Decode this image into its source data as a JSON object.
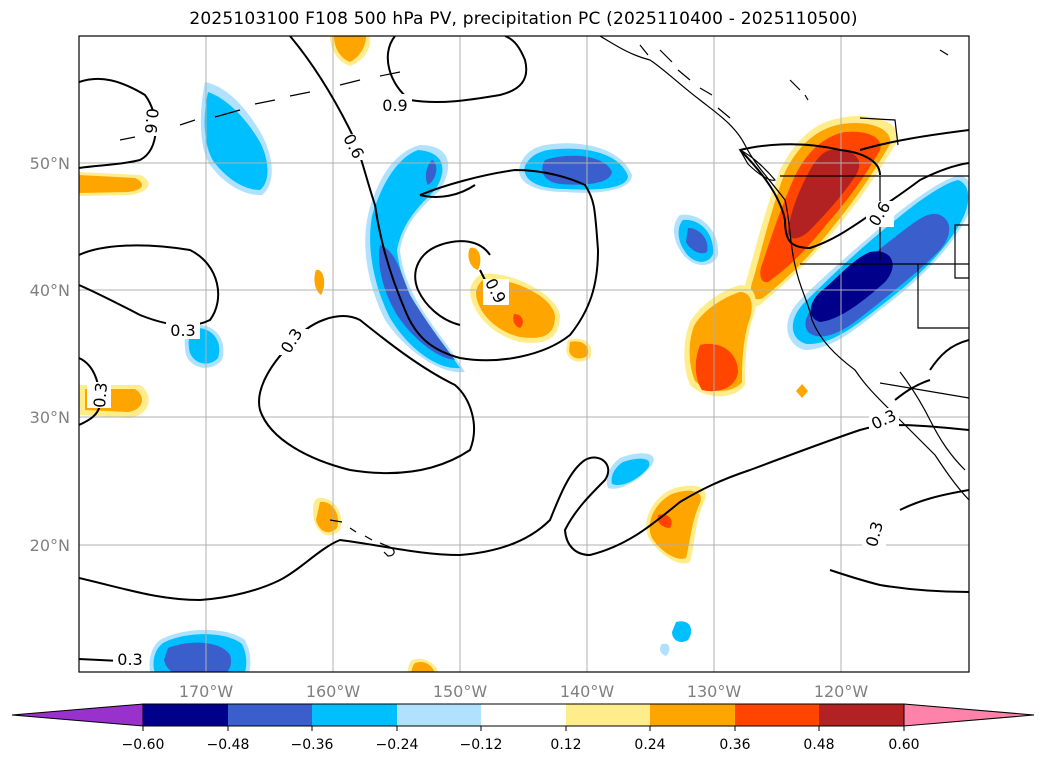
{
  "title": "2025103100 F108 500 hPa PV, precipitation PC (2025110400 - 2025110500)",
  "lat_labels": [
    "50°N",
    "40°N",
    "30°N",
    "20°N"
  ],
  "lon_labels": [
    "170°W",
    "160°W",
    "150°W",
    "140°W",
    "130°W",
    "120°W"
  ],
  "contour_labels": [
    "0.9",
    "0.6",
    "0.6",
    "0.3",
    "0.3",
    "0.9",
    "0.6",
    "0.3",
    "0.3",
    "0.3",
    "0.3"
  ],
  "colorbar": {
    "tick_labels": [
      "−0.60",
      "−0.48",
      "−0.36",
      "−0.24",
      "−0.12",
      "0.12",
      "0.24",
      "0.36",
      "0.48",
      "0.60"
    ],
    "colors": [
      "#9932cc",
      "#00008b",
      "#3a5fcd",
      "#00bfff",
      "#b0e2ff",
      "#ffffff",
      "#ffec8b",
      "#ffa500",
      "#ff4500",
      "#b22222",
      "#ff82ab"
    ]
  },
  "colors": {
    "neg_strong": "#3a5fcd",
    "neg_mid": "#00bfff",
    "neg_light": "#b0e2ff",
    "neg_darkest": "#00008b",
    "pos_light": "#ffec8b",
    "pos_mid": "#ffa500",
    "pos_strong": "#ff4500",
    "pos_darker": "#b22222"
  }
}
